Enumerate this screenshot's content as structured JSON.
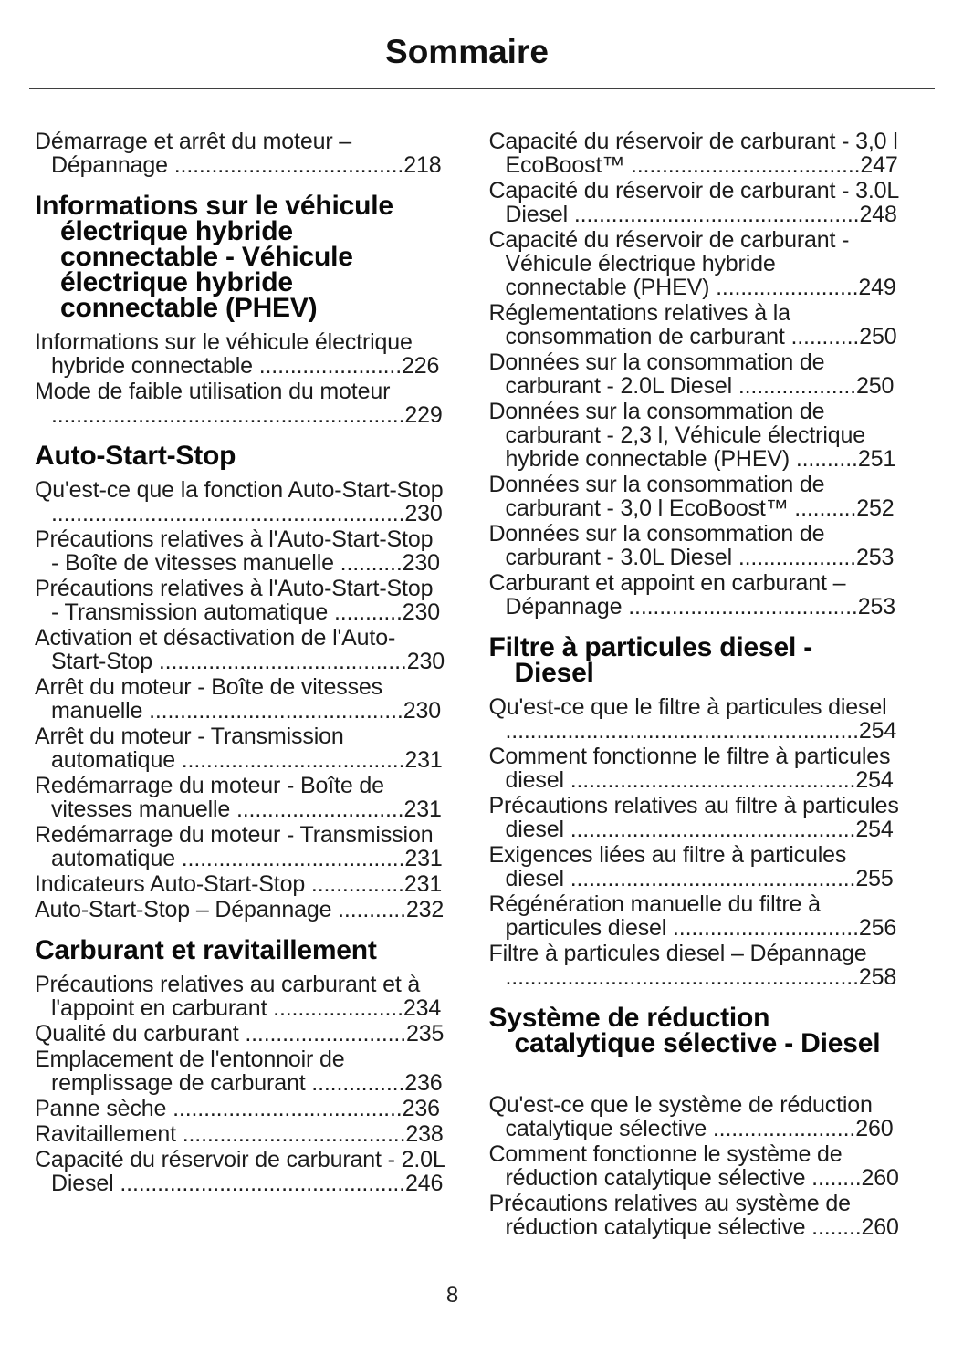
{
  "page": {
    "title": "Sommaire",
    "number": "8"
  },
  "colors": {
    "text": "#1c1c1c",
    "heading": "#0a0a0a",
    "rule": "#3f3f3f",
    "background": "#ffffff"
  },
  "columns": [
    {
      "blocks": [
        {
          "type": "entry",
          "label": "Démarrage et arrêt du moteur – Dépannage",
          "page": "218"
        },
        {
          "type": "heading",
          "text": "Informations sur le véhicule\nélectrique hybride\nconnectable - Véhicule\nélectrique hybride\nconnectable (PHEV)"
        },
        {
          "type": "entry",
          "label": "Informations sur le véhicule électrique hybride connectable",
          "page": "226"
        },
        {
          "type": "entry",
          "label": "Mode de faible utilisation du moteur",
          "page": "229"
        },
        {
          "type": "heading",
          "text": "Auto-Start-Stop"
        },
        {
          "type": "entry",
          "label": "Qu'est-ce que la fonction Auto-Start-Stop",
          "page": "230"
        },
        {
          "type": "entry",
          "label": "Précautions relatives à l'Auto-Start-Stop - Boîte de vitesses manuelle",
          "page": "230"
        },
        {
          "type": "entry",
          "label": "Précautions relatives à l'Auto-Start-Stop - Transmission automatique",
          "page": "230"
        },
        {
          "type": "entry",
          "label": "Activation et désactivation de l'Auto-Start-Stop",
          "page": "230"
        },
        {
          "type": "entry",
          "label": "Arrêt du moteur - Boîte de vitesses manuelle",
          "page": "230"
        },
        {
          "type": "entry",
          "label": "Arrêt du moteur - Transmission automatique",
          "page": "231"
        },
        {
          "type": "entry",
          "label": "Redémarrage du moteur - Boîte de vitesses manuelle",
          "page": "231"
        },
        {
          "type": "entry",
          "label": "Redémarrage du moteur - Transmission automatique",
          "page": "231"
        },
        {
          "type": "entry",
          "label": "Indicateurs Auto-Start-Stop",
          "page": "231"
        },
        {
          "type": "entry",
          "label": "Auto-Start-Stop – Dépannage",
          "page": "232"
        },
        {
          "type": "heading",
          "text": "Carburant et ravitaillement"
        },
        {
          "type": "entry",
          "label": "Précautions relatives au carburant et à l'appoint en carburant",
          "page": "234"
        },
        {
          "type": "entry",
          "label": "Qualité du carburant",
          "page": "235"
        },
        {
          "type": "entry",
          "label": "Emplacement de l'entonnoir de remplissage de carburant",
          "page": "236"
        },
        {
          "type": "entry",
          "label": "Panne sèche",
          "page": "236"
        },
        {
          "type": "entry",
          "label": "Ravitaillement",
          "page": "238"
        },
        {
          "type": "entry",
          "label": "Capacité du réservoir de carburant - 2.0L Diesel",
          "page": "246"
        }
      ]
    },
    {
      "blocks": [
        {
          "type": "entry",
          "label": "Capacité du réservoir de carburant - 3,0 l EcoBoost™",
          "page": "247"
        },
        {
          "type": "entry",
          "label": "Capacité du réservoir de carburant - 3.0L Diesel",
          "page": "248"
        },
        {
          "type": "entry",
          "label": "Capacité du réservoir de carburant - Véhicule électrique hybride connectable (PHEV)",
          "page": "249"
        },
        {
          "type": "entry",
          "label": "Réglementations relatives à la consommation de carburant",
          "page": "250"
        },
        {
          "type": "entry",
          "label": "Données sur la consommation de carburant - 2.0L Diesel",
          "page": "250"
        },
        {
          "type": "entry",
          "label": "Données sur la consommation de carburant - 2,3 l, Véhicule électrique hybride connectable (PHEV)",
          "page": "251"
        },
        {
          "type": "entry",
          "label": "Données sur la consommation de carburant - 3,0 l EcoBoost™",
          "page": "252"
        },
        {
          "type": "entry",
          "label": "Données sur la consommation de carburant - 3.0L Diesel",
          "page": "253"
        },
        {
          "type": "entry",
          "label": "Carburant et appoint en carburant – Dépannage",
          "page": "253"
        },
        {
          "type": "heading",
          "text": "Filtre à particules diesel -\nDiesel"
        },
        {
          "type": "entry",
          "label": "Qu'est-ce que le filtre à particules diesel",
          "page": "254"
        },
        {
          "type": "entry",
          "label": "Comment fonctionne le filtre à particules diesel",
          "page": "254"
        },
        {
          "type": "entry",
          "label": "Précautions relatives au filtre à particules diesel",
          "page": "254"
        },
        {
          "type": "entry",
          "label": "Exigences liées au filtre à particules diesel",
          "page": "255"
        },
        {
          "type": "entry",
          "label": "Régénération manuelle du filtre à particules diesel",
          "page": "256"
        },
        {
          "type": "entry",
          "label": "Filtre à particules diesel – Dépannage",
          "page": "258"
        },
        {
          "type": "heading",
          "text": "Système de réduction\ncatalytique sélective - Diesel",
          "extra_gap_after": true
        },
        {
          "type": "entry",
          "label": "Qu'est-ce que le système de réduction catalytique sélective",
          "page": "260"
        },
        {
          "type": "entry",
          "label": "Comment fonctionne le système de réduction catalytique sélective",
          "page": "260"
        },
        {
          "type": "entry",
          "label": "Précautions relatives au système de réduction catalytique sélective",
          "page": "260"
        }
      ]
    }
  ]
}
